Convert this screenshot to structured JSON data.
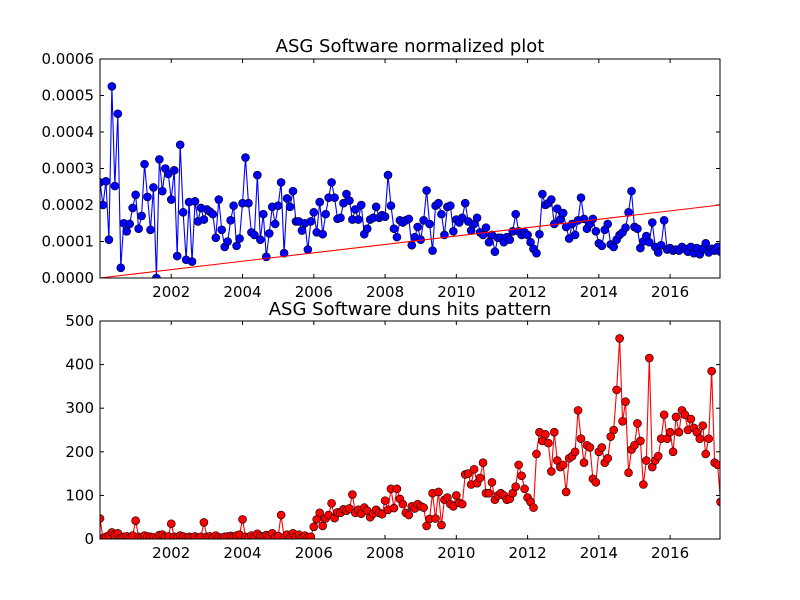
{
  "chart_data": [
    {
      "type": "line",
      "title": "ASG Software normalized plot",
      "xlabel": "",
      "ylabel": "",
      "xlim": [
        2000.0,
        2017.4
      ],
      "ylim": [
        0,
        0.0006
      ],
      "x_ticks": [
        2002,
        2004,
        2006,
        2008,
        2010,
        2012,
        2014,
        2016
      ],
      "y_ticks": [
        "0.0000",
        "0.0001",
        "0.0002",
        "0.0003",
        "0.0004",
        "0.0005",
        "0.0006"
      ],
      "y_tick_values": [
        0,
        0.0001,
        0.0002,
        0.0003,
        0.0004,
        0.0005,
        0.0006
      ],
      "grid": false,
      "series": [
        {
          "color": "#0000ff",
          "marker": "circle",
          "x_start": 2000.0,
          "x_step": 0.08333,
          "values": [
            0.000262,
            0.0002,
            0.000265,
            0.000105,
            0.000525,
            0.000252,
            0.00045,
            2.8e-05,
            0.00015,
            0.000128,
            0.000148,
            0.000192,
            0.000228,
            0.000135,
            0.00017,
            0.000312,
            0.000222,
            0.000132,
            0.000248,
            0.0,
            0.000325,
            0.000238,
            0.0003,
            0.000285,
            0.000215,
            0.000295,
            6e-05,
            0.000365,
            0.00018,
            5e-05,
            0.000208,
            4.5e-05,
            0.00021,
            0.000155,
            0.000192,
            0.00016,
            0.000188,
            0.000182,
            0.000175,
            0.00011,
            0.000215,
            0.000132,
            8.5e-05,
            0.0001,
            0.000158,
            0.000198,
            8.8e-05,
            0.000108,
            0.000205,
            0.00033,
            0.000205,
            0.000125,
            0.000118,
            0.000282,
            0.000105,
            0.000175,
            5.8e-05,
            0.000122,
            0.000195,
            0.000148,
            0.000198,
            0.000262,
            6.8e-05,
            0.000218,
            0.000195,
            0.000238,
            0.000155,
            0.000155,
            0.00013,
            0.00015,
            7.8e-05,
            0.000155,
            0.00018,
            0.000125,
            0.000208,
            0.00012,
            0.000175,
            0.00022,
            0.000262,
            0.00022,
            0.000162,
            0.000165,
            0.000205,
            0.00023,
            0.000212,
            0.00016,
            0.000188,
            0.00016,
            0.0002,
            0.00012,
            0.000135,
            0.00016,
            0.000165,
            0.000195,
            0.000165,
            0.000172,
            0.000168,
            0.000282,
            0.000198,
            0.000135,
            0.000112,
            0.000158,
            0.000152,
            0.000158,
            0.000162,
            9e-05,
            0.000112,
            0.00014,
            0.000105,
            0.000158,
            0.00024,
            0.000148,
            7.5e-05,
            0.000198,
            0.000205,
            0.000175,
            0.000118,
            0.000195,
            0.000198,
            0.000128,
            0.00016,
            0.000152,
            0.000165,
            0.000205,
            0.000155,
            0.00013,
            0.000148,
            0.000165,
            0.000125,
            0.000118,
            0.000138,
            9.8e-05,
            0.000118,
            7.2e-05,
            0.00011,
            0.00011,
            9.8e-05,
            0.000112,
            0.000105,
            0.000128,
            0.000175,
            0.000128,
            0.000118,
            0.000125,
            0.000118,
            9.8e-05,
            8e-05,
            6.8e-05,
            0.00012,
            0.00023,
            0.0002,
            0.000205,
            0.000215,
            0.000148,
            0.00019,
            0.00016,
            0.000178,
            0.00014,
            0.000108,
            0.000148,
            0.000118,
            0.000158,
            0.00022,
            0.000162,
            0.000135,
            0.000148,
            0.000162,
            0.000128,
            9.5e-05,
            8.8e-05,
            0.000132,
            0.000148,
            9.2e-05,
            8.5e-05,
            0.000105,
            0.000118,
            0.000125,
            0.000138,
            0.00018,
            0.000238,
            0.00014,
            0.000135,
            8.2e-05,
            0.0001,
            0.000115,
            9.8e-05,
            0.000152,
            8.5e-05,
            7e-05,
            9e-05,
            0.000158,
            7.8e-05,
            8.2e-05,
            7.5e-05,
            7.8e-05,
            7.5e-05,
            8.5e-05,
            8e-05,
            7.2e-05,
            8.5e-05,
            6.8e-05,
            8.2e-05,
            6.5e-05,
            8e-05,
            9.5e-05,
            7e-05,
            8e-05,
            7.5e-05,
            8.5e-05,
            7.2e-05,
            7.8e-05,
            8.2e-05,
            7.5e-05,
            9.8e-05,
            7.5e-05,
            7.2e-05,
            6.5e-05
          ]
        },
        {
          "color": "#ff0000",
          "marker": "none",
          "x": [
            2000.0,
            2017.4
          ],
          "values": [
            0.0,
            0.0002
          ]
        }
      ]
    },
    {
      "type": "line",
      "title": "ASG Software duns hits pattern",
      "xlabel": "",
      "ylabel": "",
      "xlim": [
        2000.0,
        2017.4
      ],
      "ylim": [
        0,
        500
      ],
      "x_ticks": [
        2002,
        2004,
        2006,
        2008,
        2010,
        2012,
        2014,
        2016
      ],
      "y_ticks": [
        "0",
        "100",
        "200",
        "300",
        "400",
        "500"
      ],
      "y_tick_values": [
        0,
        100,
        200,
        300,
        400,
        500
      ],
      "grid": false,
      "series": [
        {
          "color": "#ff0000",
          "marker": "circle",
          "x_start": 2000.0,
          "x_step": 0.08333,
          "values": [
            47,
            2,
            5,
            8,
            15,
            10,
            13,
            2,
            5,
            6,
            3,
            8,
            42,
            5,
            3,
            8,
            6,
            5,
            4,
            0,
            9,
            10,
            5,
            6,
            35,
            5,
            3,
            8,
            6,
            2,
            5,
            4,
            6,
            3,
            5,
            38,
            5,
            6,
            3,
            8,
            4,
            3,
            5,
            6,
            7,
            5,
            8,
            10,
            45,
            5,
            3,
            8,
            4,
            12,
            7,
            5,
            9,
            8,
            13,
            3,
            7,
            55,
            4,
            10,
            2,
            13,
            5,
            10,
            3,
            8,
            4,
            5,
            28,
            45,
            60,
            30,
            47,
            55,
            82,
            48,
            61,
            60,
            68,
            65,
            70,
            102,
            60,
            67,
            58,
            72,
            65,
            50,
            58,
            67,
            60,
            57,
            88,
            67,
            115,
            71,
            115,
            92,
            80,
            60,
            55,
            75,
            70,
            80,
            75,
            72,
            30,
            46,
            105,
            47,
            108,
            32,
            90,
            95,
            80,
            75,
            100,
            83,
            80,
            148,
            150,
            125,
            160,
            128,
            140,
            175,
            105,
            105,
            130,
            90,
            100,
            105,
            100,
            90,
            92,
            105,
            120,
            170,
            145,
            115,
            95,
            85,
            72,
            195,
            245,
            225,
            240,
            220,
            155,
            245,
            180,
            165,
            170,
            108,
            185,
            190,
            200,
            295,
            230,
            175,
            215,
            210,
            138,
            130,
            200,
            210,
            175,
            185,
            235,
            250,
            342,
            460,
            270,
            315,
            152,
            205,
            215,
            265,
            225,
            125,
            180,
            415,
            165,
            180,
            190,
            230,
            285,
            230,
            245,
            200,
            280,
            245,
            295,
            285,
            250,
            275,
            255,
            245,
            230,
            260,
            195,
            230,
            385,
            175,
            170,
            85
          ]
        }
      ]
    }
  ]
}
